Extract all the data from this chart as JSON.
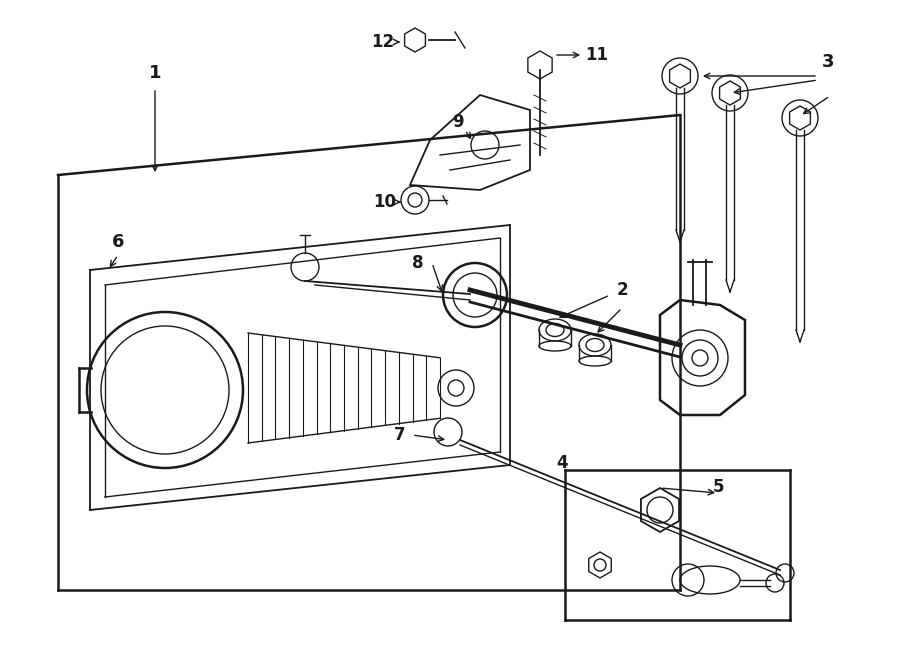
{
  "bg_color": "#ffffff",
  "line_color": "#1a1a1a",
  "lw_main": 1.8,
  "lw_thin": 1.0,
  "lw_med": 1.3,
  "fig_width": 9.0,
  "fig_height": 6.61,
  "dpi": 100
}
